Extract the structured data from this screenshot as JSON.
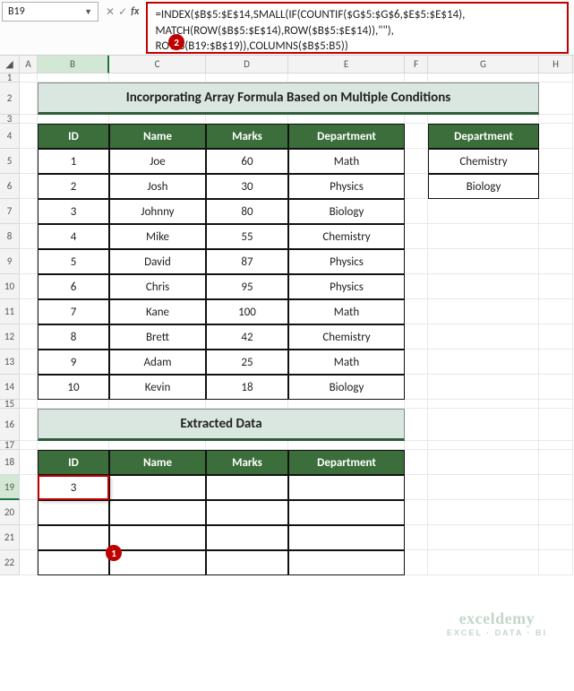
{
  "nameBox": {
    "value": "B19"
  },
  "formula": "=INDEX($B$5:$E$14,SMALL(IF(COUNTIF($G$5:$G$6,$E$5:$E$14), MATCH(ROW($B$5:$E$14),ROW($B$5:$E$14)),\"\"), ROWS(B19:$B$19)),COLUMNS($B$5:B5))",
  "columns": [
    "A",
    "B",
    "C",
    "D",
    "E",
    "F",
    "G",
    "H"
  ],
  "rowNumbers": [
    1,
    2,
    3,
    4,
    5,
    6,
    7,
    8,
    9,
    10,
    11,
    12,
    13,
    14,
    15,
    16,
    17,
    18,
    19,
    20,
    21,
    22
  ],
  "title": "Incorporating Array Formula Based on Multiple Conditions",
  "extractedTitle": "Extracted Data",
  "headers": [
    "ID",
    "Name",
    "Marks",
    "Department"
  ],
  "filterHeader": "Department",
  "filterValues": [
    "Chemistry",
    "Biology"
  ],
  "dataTable": [
    {
      "id": "1",
      "name": "Joe",
      "marks": "60",
      "dept": "Math"
    },
    {
      "id": "2",
      "name": "Josh",
      "marks": "30",
      "dept": "Physics"
    },
    {
      "id": "3",
      "name": "Johnny",
      "marks": "80",
      "dept": "Biology"
    },
    {
      "id": "4",
      "name": "Mike",
      "marks": "55",
      "dept": "Chemistry"
    },
    {
      "id": "5",
      "name": "David",
      "marks": "87",
      "dept": "Physics"
    },
    {
      "id": "6",
      "name": "Chris",
      "marks": "95",
      "dept": "Physics"
    },
    {
      "id": "7",
      "name": "Kane",
      "marks": "100",
      "dept": "Math"
    },
    {
      "id": "8",
      "name": "Brett",
      "marks": "42",
      "dept": "Chemistry"
    },
    {
      "id": "9",
      "name": "Adam",
      "marks": "25",
      "dept": "Math"
    },
    {
      "id": "10",
      "name": "Kevin",
      "marks": "18",
      "dept": "Biology"
    }
  ],
  "extractedRows": [
    {
      "id": "3",
      "name": "",
      "marks": "",
      "dept": ""
    },
    {
      "id": "",
      "name": "",
      "marks": "",
      "dept": ""
    },
    {
      "id": "",
      "name": "",
      "marks": "",
      "dept": ""
    },
    {
      "id": "",
      "name": "",
      "marks": "",
      "dept": ""
    }
  ],
  "callouts": {
    "one": "1",
    "two": "2"
  },
  "watermark": {
    "brand": "exceldemy",
    "tag": "EXCEL · DATA · BI"
  },
  "colors": {
    "headerBg": "#3b6e3b",
    "titleBg": "#d9e7e0",
    "accentRed": "#c00000",
    "gridBorder": "#e8e8e8"
  }
}
